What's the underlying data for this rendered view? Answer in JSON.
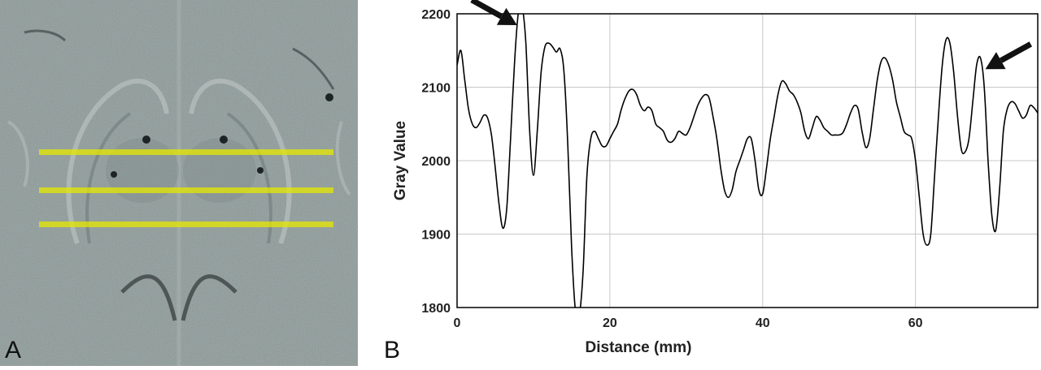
{
  "panels": {
    "a_label": "A",
    "b_label": "B"
  },
  "mri": {
    "colors": {
      "background": "#8c9a98",
      "profile_lines": "#e6e800"
    },
    "profile_lines": [
      {
        "name": "upper"
      },
      {
        "name": "middle"
      },
      {
        "name": "lower"
      }
    ]
  },
  "chart_data": {
    "type": "line",
    "title": "",
    "xlabel": "Distance (mm)",
    "ylabel": "Gray Value",
    "xlim": [
      0,
      76
    ],
    "ylim": [
      1800,
      2200
    ],
    "xticks": [
      0,
      20,
      40,
      60
    ],
    "yticks": [
      1800,
      1900,
      2000,
      2100,
      2200
    ],
    "grid": true,
    "line_color": "#000000",
    "series": [
      {
        "values": [
          [
            0,
            2130
          ],
          [
            0.5,
            2150
          ],
          [
            1,
            2110
          ],
          [
            1.5,
            2070
          ],
          [
            2,
            2050
          ],
          [
            2.5,
            2045
          ],
          [
            3,
            2052
          ],
          [
            3.5,
            2062
          ],
          [
            4,
            2058
          ],
          [
            4.5,
            2035
          ],
          [
            5,
            1990
          ],
          [
            5.5,
            1940
          ],
          [
            6,
            1908
          ],
          [
            6.5,
            1935
          ],
          [
            7,
            2030
          ],
          [
            7.5,
            2130
          ],
          [
            8,
            2200
          ],
          [
            8.5,
            2210
          ],
          [
            9,
            2160
          ],
          [
            9.5,
            2040
          ],
          [
            10,
            1980
          ],
          [
            10.5,
            2040
          ],
          [
            11,
            2120
          ],
          [
            11.5,
            2155
          ],
          [
            12,
            2160
          ],
          [
            12.5,
            2155
          ],
          [
            13,
            2148
          ],
          [
            13.5,
            2152
          ],
          [
            14,
            2120
          ],
          [
            14.5,
            2020
          ],
          [
            15,
            1880
          ],
          [
            15.5,
            1795
          ],
          [
            16,
            1790
          ],
          [
            16.5,
            1850
          ],
          [
            17,
            1980
          ],
          [
            17.5,
            2030
          ],
          [
            18,
            2040
          ],
          [
            18.5,
            2030
          ],
          [
            19,
            2020
          ],
          [
            19.5,
            2020
          ],
          [
            20,
            2030
          ],
          [
            20.5,
            2040
          ],
          [
            21,
            2050
          ],
          [
            21.5,
            2070
          ],
          [
            22,
            2085
          ],
          [
            22.5,
            2095
          ],
          [
            23,
            2097
          ],
          [
            23.5,
            2090
          ],
          [
            24,
            2075
          ],
          [
            24.5,
            2068
          ],
          [
            25,
            2073
          ],
          [
            25.5,
            2068
          ],
          [
            26,
            2050
          ],
          [
            26.5,
            2045
          ],
          [
            27,
            2040
          ],
          [
            27.5,
            2028
          ],
          [
            28,
            2025
          ],
          [
            28.5,
            2030
          ],
          [
            29,
            2040
          ],
          [
            29.5,
            2037
          ],
          [
            30,
            2035
          ],
          [
            30.5,
            2045
          ],
          [
            31,
            2060
          ],
          [
            31.5,
            2075
          ],
          [
            32,
            2085
          ],
          [
            32.5,
            2090
          ],
          [
            33,
            2085
          ],
          [
            33.5,
            2060
          ],
          [
            34,
            2030
          ],
          [
            34.5,
            1990
          ],
          [
            35,
            1960
          ],
          [
            35.5,
            1950
          ],
          [
            36,
            1960
          ],
          [
            36.5,
            1985
          ],
          [
            37,
            2000
          ],
          [
            37.5,
            2015
          ],
          [
            38,
            2030
          ],
          [
            38.5,
            2030
          ],
          [
            39,
            2000
          ],
          [
            39.5,
            1960
          ],
          [
            40,
            1955
          ],
          [
            40.5,
            1990
          ],
          [
            41,
            2030
          ],
          [
            41.5,
            2060
          ],
          [
            42,
            2090
          ],
          [
            42.5,
            2108
          ],
          [
            43,
            2105
          ],
          [
            43.5,
            2095
          ],
          [
            44,
            2090
          ],
          [
            44.5,
            2080
          ],
          [
            45,
            2065
          ],
          [
            45.5,
            2040
          ],
          [
            46,
            2030
          ],
          [
            46.5,
            2045
          ],
          [
            47,
            2060
          ],
          [
            47.5,
            2055
          ],
          [
            48,
            2045
          ],
          [
            48.5,
            2040
          ],
          [
            49,
            2035
          ],
          [
            49.5,
            2035
          ],
          [
            50,
            2035
          ],
          [
            50.5,
            2038
          ],
          [
            51,
            2050
          ],
          [
            51.5,
            2065
          ],
          [
            52,
            2075
          ],
          [
            52.5,
            2070
          ],
          [
            53,
            2040
          ],
          [
            53.5,
            2018
          ],
          [
            54,
            2030
          ],
          [
            54.5,
            2070
          ],
          [
            55,
            2110
          ],
          [
            55.5,
            2135
          ],
          [
            56,
            2140
          ],
          [
            56.5,
            2130
          ],
          [
            57,
            2110
          ],
          [
            57.5,
            2080
          ],
          [
            58,
            2060
          ],
          [
            58.5,
            2040
          ],
          [
            59,
            2035
          ],
          [
            59.5,
            2030
          ],
          [
            60,
            2000
          ],
          [
            60.5,
            1950
          ],
          [
            61,
            1900
          ],
          [
            61.5,
            1885
          ],
          [
            62,
            1900
          ],
          [
            62.5,
            1980
          ],
          [
            63,
            2060
          ],
          [
            63.5,
            2130
          ],
          [
            64,
            2165
          ],
          [
            64.5,
            2160
          ],
          [
            65,
            2120
          ],
          [
            65.5,
            2060
          ],
          [
            66,
            2015
          ],
          [
            66.5,
            2012
          ],
          [
            67,
            2030
          ],
          [
            67.5,
            2080
          ],
          [
            68,
            2130
          ],
          [
            68.5,
            2140
          ],
          [
            69,
            2100
          ],
          [
            69.5,
            2000
          ],
          [
            70,
            1925
          ],
          [
            70.5,
            1905
          ],
          [
            71,
            1960
          ],
          [
            71.5,
            2040
          ],
          [
            72,
            2070
          ],
          [
            72.5,
            2080
          ],
          [
            73,
            2078
          ],
          [
            73.5,
            2068
          ],
          [
            74,
            2058
          ],
          [
            74.5,
            2062
          ],
          [
            75,
            2075
          ],
          [
            75.5,
            2072
          ],
          [
            76,
            2065
          ]
        ]
      }
    ],
    "annotations": [
      {
        "type": "arrow",
        "x": 8.5,
        "y": 2200,
        "direction": "from upper-left"
      },
      {
        "type": "arrow",
        "x": 68.5,
        "y": 2140,
        "direction": "from upper-right"
      }
    ]
  }
}
